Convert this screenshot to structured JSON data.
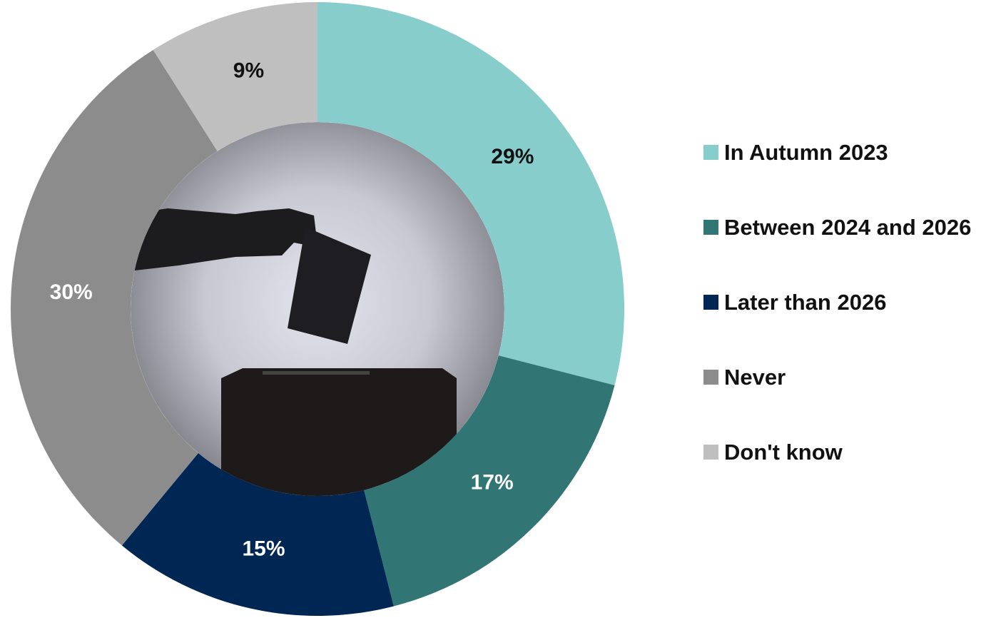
{
  "chart_data": {
    "type": "donut",
    "categories": [
      "In Autumn 2023",
      "Between 2024 and 2026",
      "Later than 2026",
      "Never",
      "Don't know"
    ],
    "values": [
      29,
      17,
      15,
      30,
      9
    ],
    "value_labels": [
      "29%",
      "17%",
      "15%",
      "30%",
      "9%"
    ],
    "colors": [
      "#86cdcb",
      "#317574",
      "#002654",
      "#8c8c8c",
      "#bfbfbf"
    ],
    "legend": "right"
  }
}
